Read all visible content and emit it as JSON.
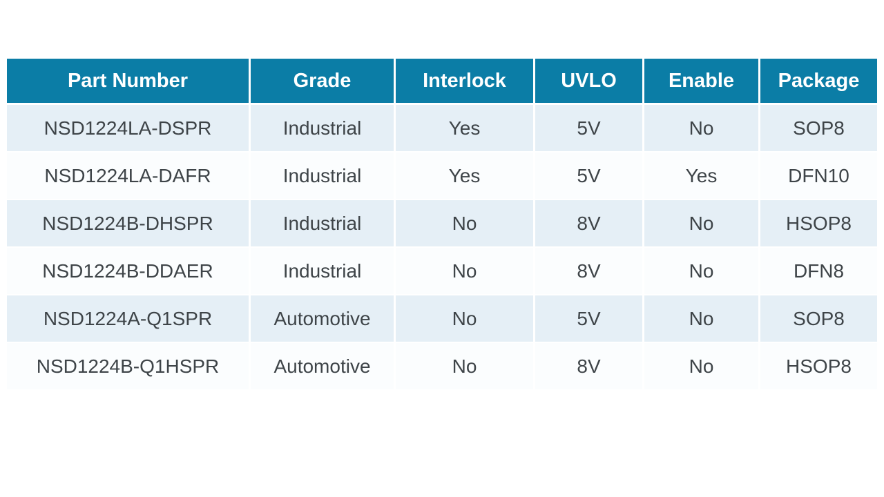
{
  "table": {
    "columns": [
      "Part Number",
      "Grade",
      "Interlock",
      "UVLO",
      "Enable",
      "Package"
    ],
    "rows": [
      [
        "NSD1224LA-DSPR",
        "Industrial",
        "Yes",
        "5V",
        "No",
        "SOP8"
      ],
      [
        "NSD1224LA-DAFR",
        "Industrial",
        "Yes",
        "5V",
        "Yes",
        "DFN10"
      ],
      [
        "NSD1224B-DHSPR",
        "Industrial",
        "No",
        "8V",
        "No",
        "HSOP8"
      ],
      [
        "NSD1224B-DDAER",
        "Industrial",
        "No",
        "8V",
        "No",
        "DFN8"
      ],
      [
        "NSD1224A-Q1SPR",
        "Automotive",
        "No",
        "5V",
        "No",
        "SOP8"
      ],
      [
        "NSD1224B-Q1HSPR",
        "Automotive",
        "No",
        "8V",
        "No",
        "HSOP8"
      ]
    ]
  },
  "colors": {
    "header_bg": "#0b7da6",
    "header_text": "#ffffff",
    "row_alt_bg": "#e5eff6",
    "row_bg": "#fbfdfe",
    "body_text": "#3e4448",
    "divider": "#ffffff"
  }
}
